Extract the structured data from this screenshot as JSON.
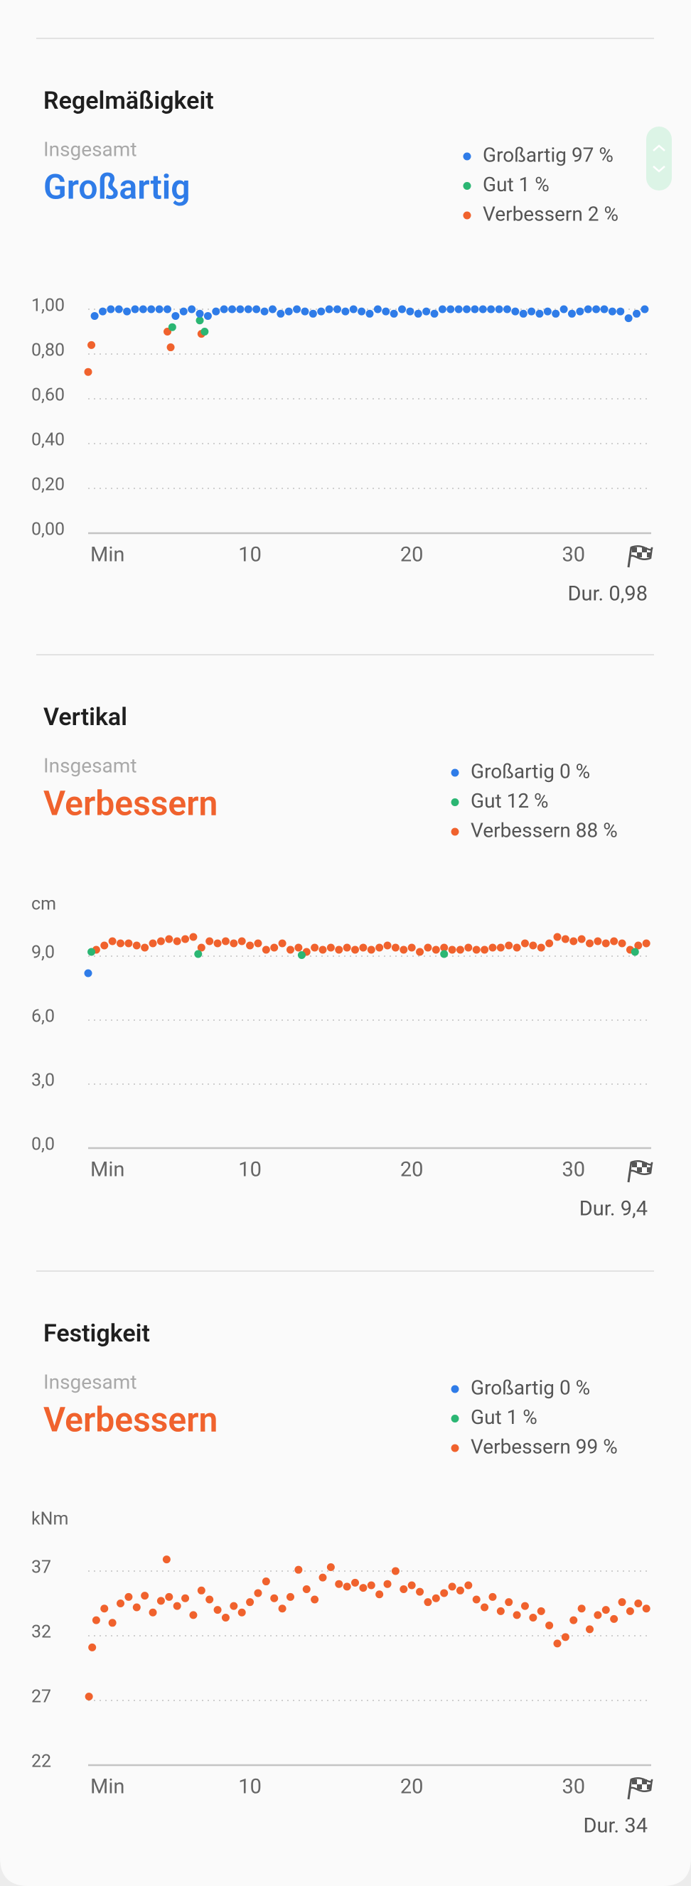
{
  "sections": [
    {
      "title": "Regelmäßigkeit",
      "overall_label": "Insgesamt",
      "overall_value": "Großartig",
      "overall_color": "#2f7ce8",
      "average": "Dur. 0,98"
    },
    {
      "title": "Vertikal",
      "overall_label": "Insgesamt",
      "overall_value": "Verbessern",
      "overall_color": "#f0622d",
      "average": "Dur. 9,4"
    },
    {
      "title": "Festigkeit",
      "overall_label": "Insgesamt",
      "overall_value": "Verbessern",
      "overall_color": "#f0622d",
      "average": "Dur. 34"
    }
  ],
  "chart_data": [
    {
      "type": "scatter",
      "xlim": [
        0,
        34.8
      ],
      "xticks": [
        {
          "value": 0,
          "label": "Min"
        },
        10,
        20,
        30
      ],
      "ylim": [
        0,
        1
      ],
      "yticks": [
        {
          "value": 0,
          "label": "0,00"
        },
        {
          "value": 0.2,
          "label": "0,20"
        },
        {
          "value": 0.4,
          "label": "0,40"
        },
        {
          "value": 0.6,
          "label": "0,60"
        },
        {
          "value": 0.8,
          "label": "0,80"
        },
        {
          "value": 1,
          "label": "1,00"
        }
      ],
      "grid": true,
      "series": [
        {
          "name": "Großartig 97 %",
          "color": "#2f7ce8",
          "x": [
            0.4,
            0.9,
            1.4,
            1.9,
            2.4,
            2.9,
            3.4,
            3.9,
            4.4,
            4.9,
            5.4,
            5.9,
            6.4,
            6.9,
            7.4,
            7.9,
            8.4,
            8.9,
            9.4,
            9.9,
            10.4,
            10.9,
            11.4,
            11.9,
            12.4,
            12.9,
            13.4,
            13.9,
            14.4,
            14.9,
            15.4,
            15.9,
            16.4,
            16.9,
            17.4,
            17.9,
            18.4,
            18.9,
            19.4,
            19.9,
            20.4,
            20.9,
            21.4,
            21.9,
            22.4,
            22.9,
            23.4,
            23.9,
            24.4,
            24.9,
            25.4,
            25.9,
            26.4,
            26.9,
            27.4,
            27.9,
            28.4,
            28.9,
            29.4,
            29.9,
            30.4,
            30.9,
            31.4,
            31.9,
            32.4,
            32.9,
            33.4,
            33.9,
            34.4
          ],
          "values": [
            0.97,
            0.99,
            1,
            1,
            0.99,
            1,
            1,
            1,
            1,
            1,
            0.97,
            0.99,
            1,
            0.98,
            0.97,
            0.99,
            1,
            1,
            1,
            1,
            1,
            0.99,
            1,
            0.98,
            0.99,
            1,
            0.99,
            0.98,
            0.99,
            1,
            1,
            0.99,
            1,
            0.99,
            0.98,
            1,
            0.99,
            0.98,
            1,
            0.99,
            0.98,
            0.99,
            0.98,
            1,
            1,
            1,
            1,
            1,
            1,
            1,
            1,
            1,
            0.99,
            0.98,
            0.99,
            0.98,
            0.99,
            0.98,
            1,
            0.98,
            0.99,
            1,
            1,
            1,
            0.99,
            0.99,
            0.96,
            0.98,
            1
          ]
        },
        {
          "name": "Gut 1 %",
          "color": "#2bb673",
          "x": [
            5.2,
            6.9,
            7.2
          ],
          "values": [
            0.92,
            0.95,
            0.9
          ]
        },
        {
          "name": "Verbessern 2 %",
          "color": "#f0622d",
          "x": [
            0,
            0.2,
            4.9,
            5.1,
            7.0
          ],
          "values": [
            0.72,
            0.84,
            0.9,
            0.83,
            0.89
          ]
        }
      ]
    },
    {
      "type": "scatter",
      "y_label": "cm",
      "xlim": [
        0,
        34.8
      ],
      "xticks": [
        {
          "value": 0,
          "label": "Min"
        },
        10,
        20,
        30
      ],
      "ylim": [
        0,
        9
      ],
      "yticks": [
        {
          "value": 0,
          "label": "0,0"
        },
        {
          "value": 3,
          "label": "3,0"
        },
        {
          "value": 6,
          "label": "6,0"
        },
        {
          "value": 9,
          "label": "9,0"
        }
      ],
      "grid": true,
      "series": [
        {
          "name": "Großartig 0 %",
          "color": "#2f7ce8",
          "x": [
            0
          ],
          "values": [
            8.2
          ]
        },
        {
          "name": "Gut 12 %",
          "color": "#2bb673",
          "x": [
            0.2,
            6.8,
            13.2,
            22.0,
            33.8
          ],
          "values": [
            9.2,
            9.1,
            9.05,
            9.1,
            9.2
          ]
        },
        {
          "name": "Verbessern 88 %",
          "color": "#f0622d",
          "x": [
            0.5,
            1,
            1.5,
            2,
            2.5,
            3,
            3.5,
            4,
            4.5,
            5,
            5.5,
            6,
            6.5,
            7,
            7.5,
            8,
            8.5,
            9,
            9.5,
            10,
            10.5,
            11,
            11.5,
            12,
            12.5,
            13,
            13.5,
            14,
            14.5,
            15,
            15.5,
            16,
            16.5,
            17,
            17.5,
            18,
            18.5,
            19,
            19.5,
            20,
            20.5,
            21,
            21.5,
            22,
            22.5,
            23,
            23.5,
            24,
            24.5,
            25,
            25.5,
            26,
            26.5,
            27,
            27.5,
            28,
            28.5,
            29,
            29.5,
            30,
            30.5,
            31,
            31.5,
            32,
            32.5,
            33,
            33.5,
            34,
            34.5
          ],
          "values": [
            9.3,
            9.5,
            9.7,
            9.6,
            9.6,
            9.5,
            9.4,
            9.6,
            9.7,
            9.8,
            9.7,
            9.8,
            9.9,
            9.4,
            9.7,
            9.6,
            9.7,
            9.6,
            9.7,
            9.5,
            9.6,
            9.3,
            9.4,
            9.6,
            9.3,
            9.4,
            9.2,
            9.4,
            9.3,
            9.4,
            9.3,
            9.4,
            9.3,
            9.4,
            9.3,
            9.4,
            9.5,
            9.4,
            9.3,
            9.4,
            9.2,
            9.4,
            9.3,
            9.4,
            9.3,
            9.3,
            9.4,
            9.3,
            9.3,
            9.4,
            9.4,
            9.5,
            9.4,
            9.6,
            9.5,
            9.4,
            9.6,
            9.9,
            9.8,
            9.7,
            9.8,
            9.6,
            9.7,
            9.6,
            9.7,
            9.6,
            9.3,
            9.5,
            9.6
          ]
        }
      ]
    },
    {
      "type": "scatter",
      "y_label": "kNm",
      "xlim": [
        0,
        34.8
      ],
      "xticks": [
        {
          "value": 0,
          "label": "Min"
        },
        10,
        20,
        30
      ],
      "ylim": [
        22,
        37
      ],
      "yticks": [
        22,
        27,
        32,
        37
      ],
      "grid": true,
      "series": [
        {
          "name": "Großartig 0 %",
          "color": "#2f7ce8",
          "x": [],
          "values": []
        },
        {
          "name": "Gut 1 %",
          "color": "#2bb673",
          "x": [],
          "values": []
        },
        {
          "name": "Verbessern 99 %",
          "color": "#f0622d",
          "x": [
            0.05,
            0.25,
            4.85,
            0.5,
            1,
            1.5,
            2,
            2.5,
            3,
            3.5,
            4,
            4.5,
            5,
            5.5,
            6,
            6.5,
            7,
            7.5,
            8,
            8.5,
            9,
            9.5,
            10,
            10.5,
            11,
            11.5,
            12,
            12.5,
            13,
            13.5,
            14,
            14.5,
            15,
            15.5,
            16,
            16.5,
            17,
            17.5,
            18,
            18.5,
            19,
            19.5,
            20,
            20.5,
            21,
            21.5,
            22,
            22.5,
            23,
            23.5,
            24,
            24.5,
            25,
            25.5,
            26,
            26.5,
            27,
            27.5,
            28,
            28.5,
            29,
            29.5,
            30,
            30.5,
            31,
            31.5,
            32,
            32.5,
            33,
            33.5,
            34,
            34.5
          ],
          "values": [
            27.3,
            31.1,
            37.9,
            33.2,
            34.1,
            33,
            34.5,
            35,
            34.2,
            35.1,
            33.8,
            34.7,
            35,
            34.3,
            34.9,
            33.6,
            35.5,
            34.8,
            34,
            33.4,
            34.3,
            33.8,
            34.6,
            35.3,
            36.2,
            34.9,
            34.1,
            35,
            37.1,
            35.6,
            34.8,
            36.5,
            37.3,
            36,
            35.8,
            36.1,
            35.7,
            35.9,
            35.2,
            36,
            37,
            35.6,
            35.9,
            35.4,
            34.6,
            34.9,
            35.3,
            35.8,
            35.5,
            35.9,
            34.8,
            34.2,
            35,
            33.9,
            34.6,
            33.6,
            34.3,
            33.4,
            33.9,
            32.8,
            31.4,
            31.9,
            33.2,
            34.1,
            32.5,
            33.6,
            34,
            33.3,
            34.6,
            33.9,
            34.5,
            34.1
          ]
        }
      ]
    }
  ]
}
